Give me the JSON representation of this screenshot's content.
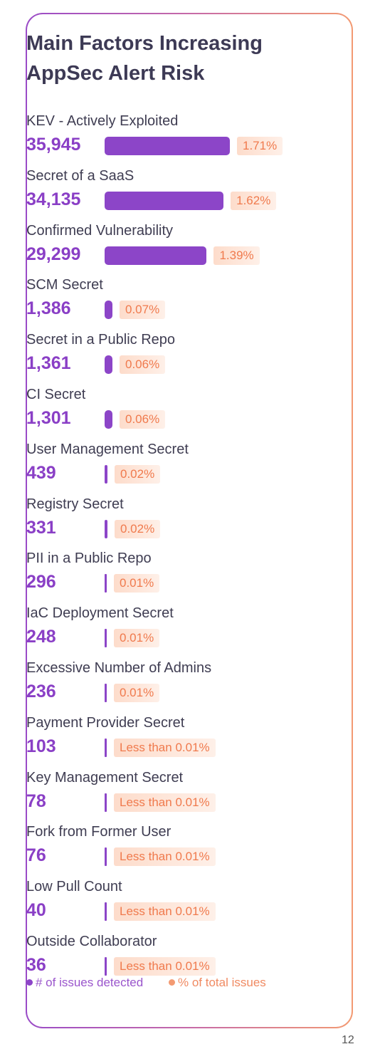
{
  "page": {
    "number": "12"
  },
  "colors": {
    "bar": "#8c45c8",
    "count_text": "#8a3fc6",
    "percent_text": "#f07a4d",
    "border_start": "#9a4bc7",
    "border_end": "#f39a72"
  },
  "chart_data": {
    "type": "bar",
    "title": "Main Factors Increasing AppSec Alert Risk",
    "orientation": "horizontal",
    "categories": [
      "KEV - Actively Exploited",
      "Secret of a SaaS",
      "Confirmed Vulnerability",
      "SCM Secret",
      "Secret in a Public Repo",
      "CI Secret",
      "User Management Secret",
      "Registry Secret",
      "PII in a Public Repo",
      "IaC Deployment Secret",
      "Excessive Number of Admins",
      "Payment Provider Secret",
      "Key Management Secret",
      "Fork from Former User",
      "Low Pull Count",
      "Outside Collaborator"
    ],
    "series": [
      {
        "name": "# of issues detected",
        "values": [
          35945,
          34135,
          29299,
          1386,
          1361,
          1301,
          439,
          331,
          296,
          248,
          236,
          103,
          78,
          76,
          40,
          36
        ],
        "labels": [
          "35,945",
          "34,135",
          "29,299",
          "1,386",
          "1,361",
          "1,301",
          "439",
          "331",
          "296",
          "248",
          "236",
          "103",
          "78",
          "76",
          "40",
          "36"
        ]
      },
      {
        "name": "% of total issues",
        "labels": [
          "1.71%",
          "1.62%",
          "1.39%",
          "0.07%",
          "0.06%",
          "0.06%",
          "0.02%",
          "0.02%",
          "0.01%",
          "0.01%",
          "0.01%",
          "Less than 0.01%",
          "Less than 0.01%",
          "Less than 0.01%",
          "Less than 0.01%",
          "Less than 0.01%"
        ]
      }
    ],
    "legend": [
      "# of issues detected",
      "% of total issues"
    ],
    "legend_position": "bottom",
    "grid": false
  }
}
